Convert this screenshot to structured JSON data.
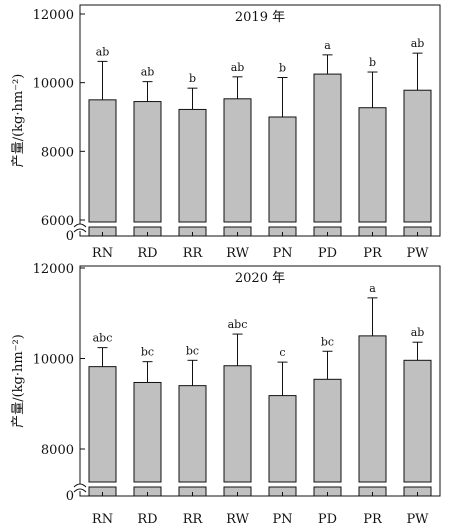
{
  "chart_data": [
    {
      "type": "bar",
      "title": "2019 年",
      "ylabel": "产量/(kg·hm⁻²)",
      "ylim": [
        6000,
        12000
      ],
      "yticks": [
        6000,
        8000,
        10000,
        12000
      ],
      "axis_break_label": "0",
      "categories": [
        "RN",
        "RD",
        "RR",
        "RW",
        "PN",
        "PD",
        "PR",
        "PW"
      ],
      "values": [
        9500,
        9450,
        9220,
        9530,
        9000,
        10250,
        9270,
        9780
      ],
      "errors": [
        1120,
        580,
        620,
        640,
        1150,
        560,
        1040,
        1080
      ],
      "significance": [
        "ab",
        "ab",
        "b",
        "ab",
        "b",
        "a",
        "b",
        "ab"
      ],
      "bar_color": "#c0c0c0"
    },
    {
      "type": "bar",
      "title": "2020 年",
      "ylabel": "产量/(kg·hm⁻²)",
      "ylim": [
        7000,
        12000
      ],
      "yticks": [
        8000,
        10000,
        12000
      ],
      "axis_break_label": "0",
      "categories": [
        "RN",
        "RD",
        "RR",
        "RW",
        "PN",
        "PD",
        "PR",
        "PW"
      ],
      "values": [
        9820,
        9470,
        9400,
        9840,
        9180,
        9540,
        10500,
        9960
      ],
      "errors": [
        420,
        460,
        560,
        700,
        740,
        620,
        840,
        400
      ],
      "significance": [
        "abc",
        "bc",
        "bc",
        "abc",
        "c",
        "bc",
        "a",
        "ab"
      ],
      "bar_color": "#c0c0c0"
    }
  ]
}
